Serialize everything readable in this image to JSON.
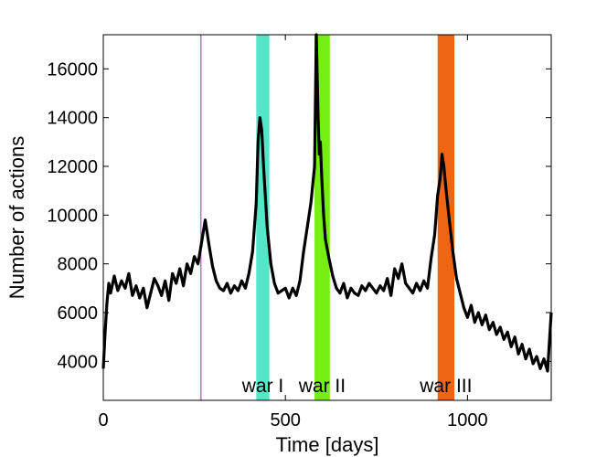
{
  "chart_data": {
    "type": "line",
    "title": "",
    "xlabel": "Time [days]",
    "ylabel": "Number of actions",
    "xlim": [
      0,
      1230
    ],
    "ylim": [
      2400,
      17400
    ],
    "xticks": [
      0,
      500,
      1000
    ],
    "yticks": [
      4000,
      6000,
      8000,
      10000,
      12000,
      14000,
      16000
    ],
    "grid": false,
    "legend": "none",
    "line_color": "#000000",
    "marker_line": {
      "x": 268,
      "color": "#cc66ee"
    },
    "bands": [
      {
        "label": "war I",
        "x_start": 420,
        "x_end": 456,
        "color": "#55e6c8"
      },
      {
        "label": "war II",
        "x_start": 580,
        "x_end": 622,
        "color": "#77ee11"
      },
      {
        "label": "war III",
        "x_start": 918,
        "x_end": 964,
        "color": "#ee6611"
      }
    ],
    "series": [
      {
        "x": [
          0,
          5,
          10,
          15,
          20,
          30,
          40,
          50,
          60,
          70,
          80,
          90,
          100,
          110,
          120,
          130,
          140,
          150,
          160,
          170,
          180,
          190,
          200,
          210,
          220,
          230,
          240,
          250,
          260,
          270,
          280,
          290,
          300,
          310,
          320,
          330,
          340,
          350,
          360,
          370,
          380,
          390,
          400,
          410,
          420,
          425,
          430,
          435,
          440,
          450,
          460,
          470,
          480,
          490,
          500,
          510,
          520,
          530,
          540,
          550,
          560,
          570,
          580,
          585,
          590,
          593,
          596,
          600,
          605,
          610,
          620,
          630,
          640,
          650,
          660,
          670,
          680,
          690,
          700,
          710,
          720,
          730,
          740,
          750,
          760,
          770,
          780,
          790,
          800,
          810,
          820,
          830,
          840,
          850,
          860,
          870,
          880,
          890,
          900,
          910,
          918,
          925,
          930,
          935,
          940,
          950,
          960,
          970,
          980,
          990,
          1000,
          1010,
          1020,
          1030,
          1040,
          1050,
          1060,
          1070,
          1080,
          1090,
          1100,
          1110,
          1120,
          1130,
          1140,
          1150,
          1160,
          1170,
          1180,
          1190,
          1200,
          1210,
          1220,
          1230
        ],
        "y": [
          3700,
          5200,
          6400,
          7200,
          6800,
          7500,
          6900,
          7300,
          7000,
          7600,
          6700,
          7100,
          6600,
          7000,
          6200,
          6800,
          7400,
          7100,
          6700,
          7300,
          6500,
          7600,
          7200,
          7800,
          7100,
          8000,
          7600,
          8300,
          8000,
          8900,
          9800,
          8800,
          7900,
          7300,
          7000,
          6900,
          7200,
          6800,
          7100,
          6900,
          7300,
          7000,
          7600,
          8500,
          10500,
          13000,
          14000,
          13500,
          12000,
          9500,
          8000,
          7200,
          6800,
          6900,
          7000,
          6600,
          7000,
          6700,
          7300,
          8500,
          9500,
          10500,
          12000,
          17400,
          14000,
          12500,
          13000,
          11500,
          10000,
          9000,
          8200,
          7500,
          7000,
          6800,
          7200,
          6600,
          7000,
          6800,
          6700,
          7100,
          6900,
          7200,
          7000,
          6800,
          7100,
          6900,
          7400,
          6700,
          7800,
          7400,
          8000,
          7200,
          7000,
          6800,
          7200,
          6900,
          7300,
          7000,
          8200,
          9200,
          10800,
          11500,
          12500,
          12000,
          11200,
          9800,
          8500,
          7400,
          6800,
          6200,
          5800,
          6300,
          5600,
          6000,
          5500,
          5900,
          5300,
          5600,
          5100,
          5400,
          4900,
          5200,
          4600,
          5000,
          4300,
          4700,
          4100,
          4500,
          3900,
          4200,
          3700,
          4100,
          3600,
          6000
        ]
      }
    ]
  }
}
